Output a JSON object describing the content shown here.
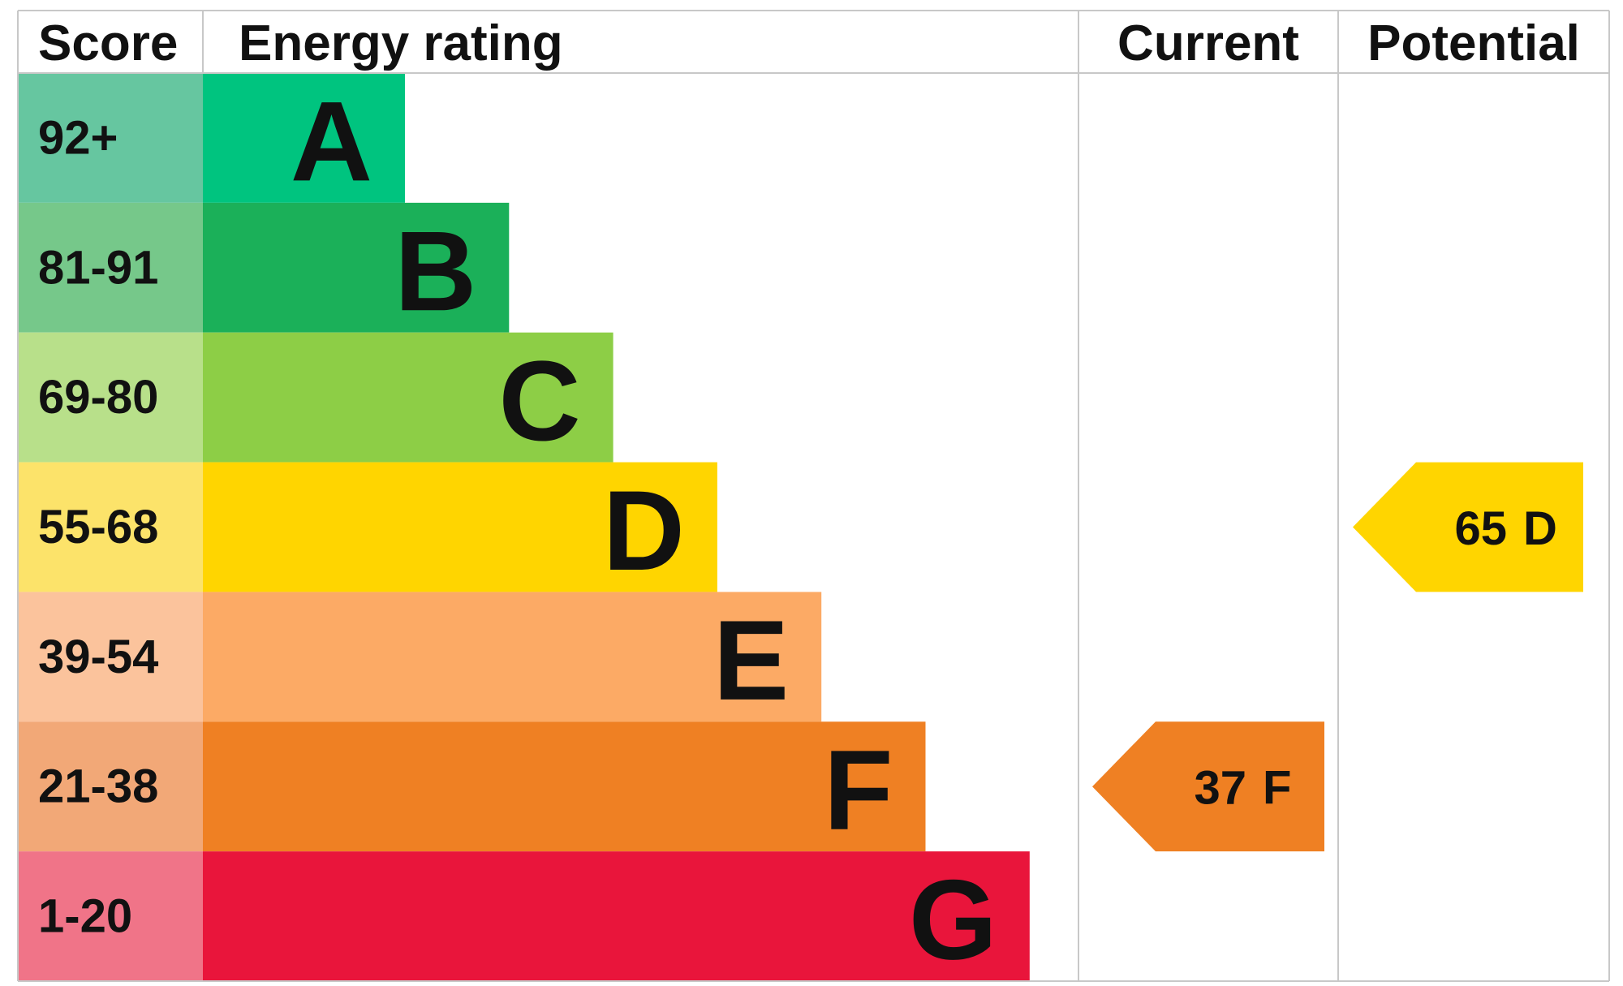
{
  "chart_data": {
    "type": "epc",
    "headers": [
      "Score",
      "Energy rating",
      "Current",
      "Potential"
    ],
    "bands": [
      {
        "score": "92+",
        "letter": "A",
        "color": "#00c47f",
        "light": "#66c6a0"
      },
      {
        "score": "81-91",
        "letter": "B",
        "color": "#1bb059",
        "light": "#76c88a"
      },
      {
        "score": "69-80",
        "letter": "C",
        "color": "#8dce46",
        "light": "#b8e08a"
      },
      {
        "score": "55-68",
        "letter": "D",
        "color": "#ffd500",
        "light": "#fce36a"
      },
      {
        "score": "39-54",
        "letter": "E",
        "color": "#fcaa65",
        "light": "#fbc39c"
      },
      {
        "score": "21-38",
        "letter": "F",
        "color": "#ef8023",
        "light": "#f2a877"
      },
      {
        "score": "1-20",
        "letter": "G",
        "color": "#e9153b",
        "light": "#f07488"
      }
    ],
    "current": {
      "value": 37,
      "letter": "F"
    },
    "potential": {
      "value": 65,
      "letter": "D"
    }
  }
}
